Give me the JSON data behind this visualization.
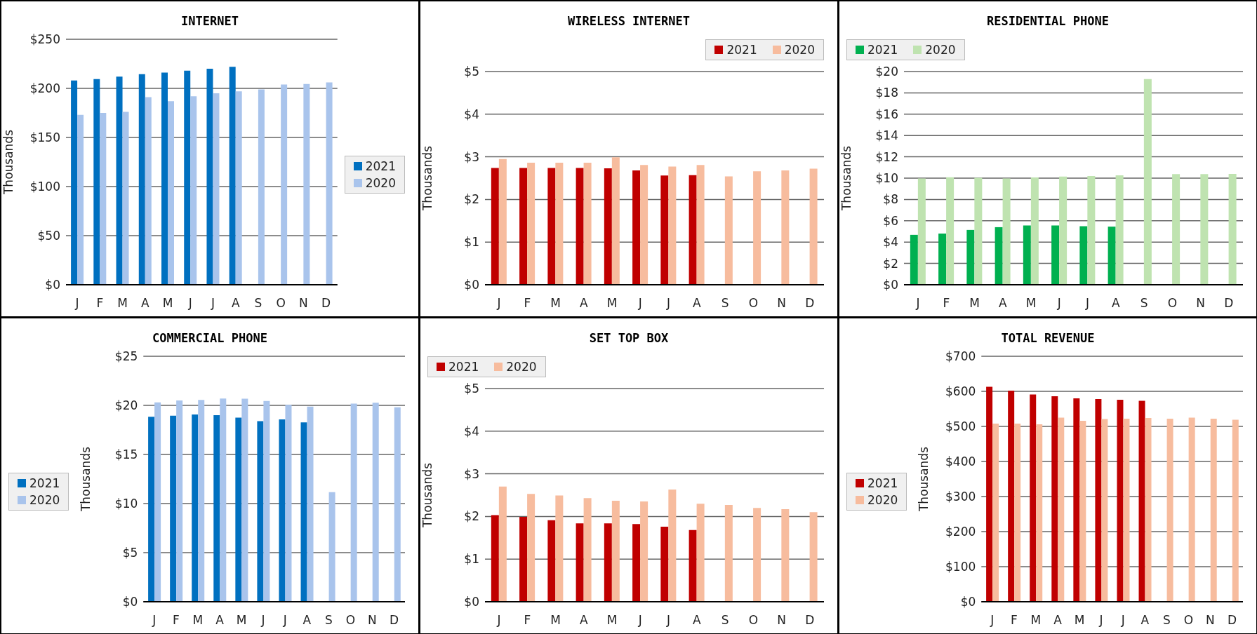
{
  "chart_data": [
    {
      "type": "bar",
      "title": "INTERNET",
      "ylabel": "Thousands",
      "categories": [
        "J",
        "F",
        "M",
        "A",
        "M",
        "J",
        "J",
        "A",
        "S",
        "O",
        "N",
        "D"
      ],
      "series": [
        {
          "name": "2021",
          "color": "#0070c0",
          "values": [
            208,
            209.5,
            212,
            214.4,
            216,
            218,
            220,
            222,
            null,
            null,
            null,
            null
          ]
        },
        {
          "name": "2020",
          "color": "#a9c4ec",
          "values": [
            173,
            175,
            176,
            191,
            187,
            192,
            195,
            197,
            199,
            204,
            204.5,
            206
          ]
        }
      ],
      "ylim": [
        0,
        250
      ],
      "yticks": [
        {
          "value": 0,
          "label": "$0"
        },
        {
          "value": 50,
          "label": "$50"
        },
        {
          "value": 100,
          "label": "$100"
        },
        {
          "value": 150,
          "label": "$150"
        },
        {
          "value": 200,
          "label": "$200"
        },
        {
          "value": 250,
          "label": "$250"
        }
      ],
      "grid": "y",
      "legend": "right"
    },
    {
      "type": "bar",
      "title": "WIRELESS INTERNET",
      "ylabel": "Thousands",
      "categories": [
        "J",
        "F",
        "M",
        "A",
        "M",
        "J",
        "J",
        "A",
        "S",
        "O",
        "N",
        "D"
      ],
      "series": [
        {
          "name": "2021",
          "color": "#c00000",
          "values": [
            2.74,
            2.74,
            2.74,
            2.74,
            2.73,
            2.68,
            2.56,
            2.57,
            null,
            null,
            null,
            null
          ]
        },
        {
          "name": "2020",
          "color": "#f7bc9e",
          "values": [
            2.95,
            2.86,
            2.86,
            2.86,
            2.99,
            2.81,
            2.77,
            2.81,
            2.54,
            2.66,
            2.68,
            2.72
          ]
        }
      ],
      "ylim": [
        0,
        5
      ],
      "yticks": [
        {
          "value": 0,
          "label": "$0"
        },
        {
          "value": 1,
          "label": "$1"
        },
        {
          "value": 2,
          "label": "$2"
        },
        {
          "value": 3,
          "label": "$3"
        },
        {
          "value": 4,
          "label": "$4"
        },
        {
          "value": 5,
          "label": "$5"
        }
      ],
      "grid": "y",
      "legend": "top right"
    },
    {
      "type": "bar",
      "title": "RESIDENTIAL PHONE",
      "ylabel": "Thousands",
      "categories": [
        "J",
        "F",
        "M",
        "A",
        "M",
        "J",
        "J",
        "A",
        "S",
        "O",
        "N",
        "D"
      ],
      "series": [
        {
          "name": "2021",
          "color": "#00b050",
          "values": [
            4.68,
            4.8,
            5.14,
            5.4,
            5.56,
            5.56,
            5.49,
            5.45,
            null,
            null,
            null,
            null
          ]
        },
        {
          "name": "2020",
          "color": "#bfe3b0",
          "values": [
            9.97,
            10.08,
            10.03,
            9.97,
            10.06,
            10.15,
            10.2,
            10.27,
            19.3,
            10.38,
            10.38,
            10.4
          ]
        }
      ],
      "ylim": [
        0,
        20
      ],
      "yticks": [
        {
          "value": 0,
          "label": "$0"
        },
        {
          "value": 2,
          "label": "$2"
        },
        {
          "value": 4,
          "label": "$4"
        },
        {
          "value": 6,
          "label": "$6"
        },
        {
          "value": 8,
          "label": "$8"
        },
        {
          "value": 10,
          "label": "$10"
        },
        {
          "value": 12,
          "label": "$12"
        },
        {
          "value": 14,
          "label": "$14"
        },
        {
          "value": 16,
          "label": "$16"
        },
        {
          "value": 18,
          "label": "$18"
        },
        {
          "value": 20,
          "label": "$20"
        }
      ],
      "grid": "y",
      "legend": "top left"
    },
    {
      "type": "bar",
      "title": "COMMERCIAL PHONE",
      "ylabel": "Thousands",
      "categories": [
        "J",
        "F",
        "M",
        "A",
        "M",
        "J",
        "J",
        "A",
        "S",
        "O",
        "N",
        "D"
      ],
      "series": [
        {
          "name": "2021",
          "color": "#0070c0",
          "values": [
            18.84,
            18.95,
            19.07,
            19.0,
            18.75,
            18.4,
            18.58,
            18.26,
            null,
            null,
            null,
            null
          ]
        },
        {
          "name": "2020",
          "color": "#a9c4ec",
          "values": [
            20.3,
            20.5,
            20.55,
            20.7,
            20.67,
            20.44,
            20.06,
            19.88,
            11.16,
            20.17,
            20.26,
            19.8
          ]
        }
      ],
      "ylim": [
        0,
        25
      ],
      "yticks": [
        {
          "value": 0,
          "label": "$0"
        },
        {
          "value": 5,
          "label": "$5"
        },
        {
          "value": 10,
          "label": "$10"
        },
        {
          "value": 15,
          "label": "$15"
        },
        {
          "value": 20,
          "label": "$20"
        },
        {
          "value": 25,
          "label": "$25"
        }
      ],
      "grid": "y",
      "legend": "left"
    },
    {
      "type": "bar",
      "title": "SET TOP BOX",
      "ylabel": "Thousands",
      "categories": [
        "J",
        "F",
        "M",
        "A",
        "M",
        "J",
        "J",
        "A",
        "S",
        "O",
        "N",
        "D"
      ],
      "series": [
        {
          "name": "2021",
          "color": "#c00000",
          "values": [
            2.03,
            1.99,
            1.91,
            1.84,
            1.84,
            1.82,
            1.76,
            1.68,
            null,
            null,
            null,
            null
          ]
        },
        {
          "name": "2020",
          "color": "#f7bc9e",
          "values": [
            2.7,
            2.53,
            2.49,
            2.43,
            2.37,
            2.35,
            2.63,
            2.3,
            2.27,
            2.2,
            2.17,
            2.1
          ]
        }
      ],
      "ylim": [
        0,
        5
      ],
      "yticks": [
        {
          "value": 0,
          "label": "$0"
        },
        {
          "value": 1,
          "label": "$1"
        },
        {
          "value": 2,
          "label": "$2"
        },
        {
          "value": 3,
          "label": "$3"
        },
        {
          "value": 4,
          "label": "$4"
        },
        {
          "value": 5,
          "label": "$5"
        }
      ],
      "grid": "y",
      "legend": "top"
    },
    {
      "type": "bar",
      "title": "TOTAL REVENUE",
      "ylabel": "Thousands",
      "categories": [
        "J",
        "F",
        "M",
        "A",
        "M",
        "J",
        "J",
        "A",
        "S",
        "O",
        "N",
        "D"
      ],
      "series": [
        {
          "name": "2021",
          "color": "#c00000",
          "values": [
            613,
            602,
            591,
            586,
            580,
            578,
            576,
            573,
            null,
            null,
            null,
            null
          ]
        },
        {
          "name": "2020",
          "color": "#f7bc9e",
          "values": [
            508,
            508,
            506,
            525,
            516,
            521,
            522,
            524,
            522,
            525,
            522,
            519
          ]
        }
      ],
      "ylim": [
        0,
        700
      ],
      "yticks": [
        {
          "value": 0,
          "label": "$0"
        },
        {
          "value": 100,
          "label": "$100"
        },
        {
          "value": 200,
          "label": "$200"
        },
        {
          "value": 300,
          "label": "$300"
        },
        {
          "value": 400,
          "label": "$400"
        },
        {
          "value": 500,
          "label": "$500"
        },
        {
          "value": 600,
          "label": "$600"
        },
        {
          "value": 700,
          "label": "$700"
        }
      ],
      "grid": "y",
      "legend": "left"
    }
  ]
}
